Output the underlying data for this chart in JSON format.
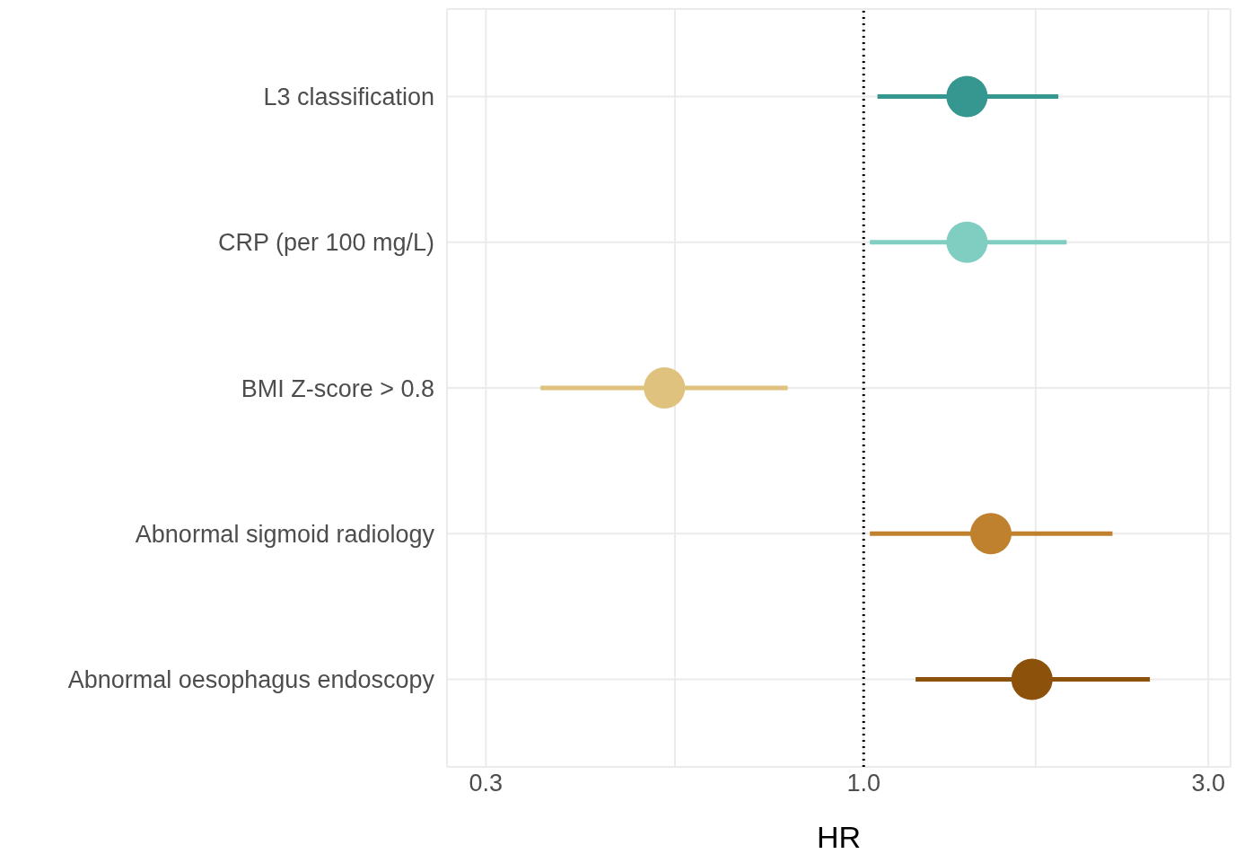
{
  "chart_data": {
    "type": "scatter",
    "orientation": "horizontal",
    "xlabel": "HR",
    "categories": [
      "L3 classification",
      "CRP (per 100 mg/L)",
      "BMI Z-score > 0.8",
      "Abnormal sigmoid radiology",
      "Abnormal oesophagus endoscopy"
    ],
    "values": [
      1.39,
      1.39,
      0.53,
      1.5,
      1.71
    ],
    "errors": [
      [
        1.045,
        1.86
      ],
      [
        1.02,
        1.91
      ],
      [
        0.357,
        0.785
      ],
      [
        1.02,
        2.21
      ],
      [
        1.18,
        2.49
      ]
    ],
    "colors": [
      "#35978f",
      "#80cdc1",
      "#dfc27d",
      "#bf812d",
      "#8c510a"
    ],
    "log": "x",
    "xlim": [
      0.265,
      3.22
    ],
    "xticks": [
      0.3,
      {
        "value": 0.548,
        "label": null
      },
      {
        "value": 1,
        "label": "1.0"
      },
      {
        "value": 1.73,
        "label": null
      },
      {
        "value": 3,
        "label": "3.0"
      }
    ],
    "ref_lines": [
      {
        "axis": "x",
        "value": 1,
        "line_style": "dotted",
        "color": "#000000"
      }
    ],
    "grid": true,
    "legend": false,
    "marker": "circle"
  }
}
